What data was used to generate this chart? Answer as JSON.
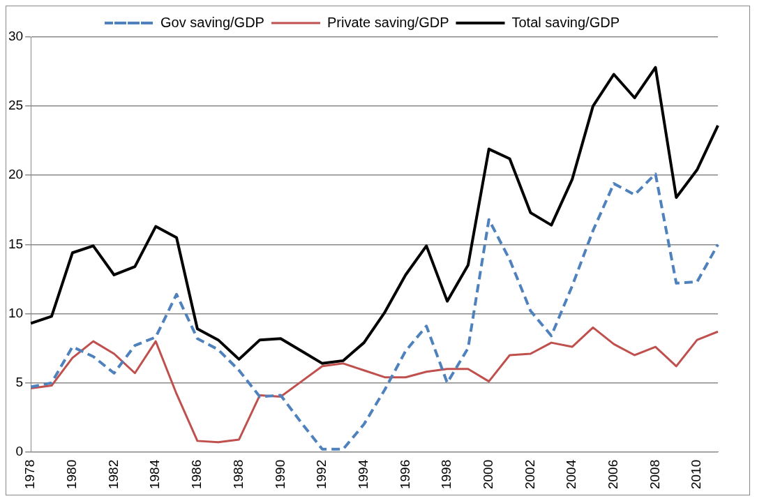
{
  "chart_data": {
    "type": "line",
    "categories": [
      "1978",
      null,
      "1980",
      null,
      "1982",
      null,
      "1984",
      null,
      "1986",
      null,
      "1988",
      null,
      "1990",
      null,
      "1992",
      null,
      "1994",
      null,
      "1996",
      null,
      "1998",
      null,
      "2000",
      null,
      "2002",
      null,
      "2004",
      null,
      "2006",
      null,
      "2008",
      null,
      "2010",
      null
    ],
    "ylim": [
      0,
      30
    ],
    "yticks": [
      0,
      5,
      10,
      15,
      20,
      25,
      30
    ],
    "grid": "y",
    "legend": "top",
    "marker": "none",
    "series": [
      {
        "name": "Gov saving/GDP",
        "color": "#4f81bd",
        "line_style": "dashed",
        "values": [
          4.7,
          5.0,
          7.6,
          6.9,
          5.7,
          7.7,
          8.3,
          11.4,
          8.2,
          7.4,
          5.9,
          4.0,
          4.1,
          2.1,
          0.2,
          0.2,
          2.0,
          4.5,
          7.3,
          9.1,
          5.0,
          7.5,
          16.8,
          13.9,
          10.2,
          8.4,
          12.0,
          16.0,
          19.4,
          18.6,
          20.1,
          12.2,
          12.3,
          15.0
        ]
      },
      {
        "name": "Private saving/GDP",
        "color": "#c0504d",
        "line_style": "solid",
        "values": [
          4.6,
          4.8,
          6.8,
          8.0,
          7.1,
          5.7,
          8.0,
          4.2,
          0.8,
          0.7,
          0.9,
          4.1,
          4.0,
          5.1,
          6.2,
          6.4,
          5.9,
          5.4,
          5.4,
          5.8,
          6.0,
          6.0,
          5.1,
          7.0,
          7.1,
          7.9,
          7.6,
          9.0,
          7.8,
          7.0,
          7.6,
          6.2,
          8.1,
          8.7
        ]
      },
      {
        "name": "Total saving/GDP",
        "color": "#000000",
        "line_style": "solid",
        "values": [
          9.3,
          9.8,
          14.4,
          14.9,
          12.8,
          13.4,
          16.3,
          15.5,
          8.9,
          8.1,
          6.7,
          8.1,
          8.2,
          7.3,
          6.4,
          6.6,
          7.9,
          10.1,
          12.8,
          14.9,
          10.9,
          13.5,
          21.9,
          21.2,
          17.3,
          16.4,
          19.7,
          25.0,
          27.3,
          25.6,
          27.8,
          18.4,
          20.4,
          23.6
        ]
      }
    ]
  }
}
